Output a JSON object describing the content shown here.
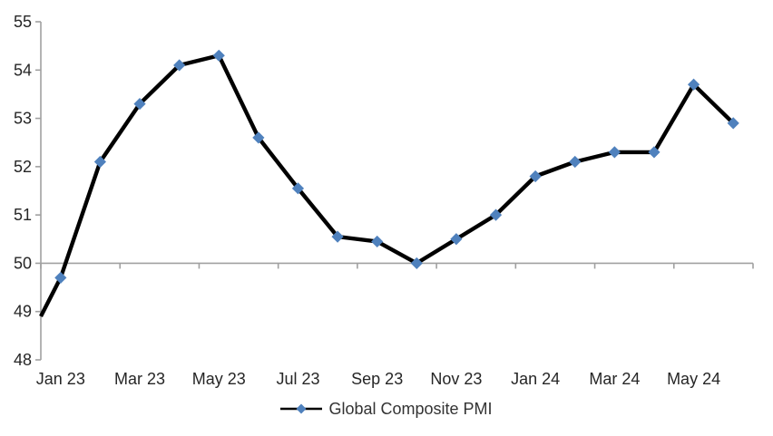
{
  "chart_data": {
    "type": "line",
    "title": "",
    "x": [
      "Dec 22",
      "Jan 23",
      "Feb 23",
      "Mar 23",
      "Apr 23",
      "May 23",
      "Jun 23",
      "Jul 23",
      "Aug 23",
      "Sep 23",
      "Oct 23",
      "Nov 23",
      "Dec 23",
      "Jan 24",
      "Feb 24",
      "Mar 24",
      "Apr 24",
      "May 24",
      "Jun 24"
    ],
    "series": [
      {
        "name": "Global Composite PMI",
        "values": [
          48.9,
          49.7,
          52.1,
          53.3,
          54.1,
          54.3,
          52.6,
          51.55,
          50.55,
          50.45,
          50.0,
          50.5,
          51.0,
          51.8,
          52.1,
          52.3,
          52.3,
          53.7,
          52.9
        ]
      }
    ],
    "x_tick_labels": [
      "Jan 23",
      "Mar 23",
      "May 23",
      "Jul 23",
      "Sep 23",
      "Nov 23",
      "Jan 24",
      "Mar 24",
      "May 24"
    ],
    "x_label_interval": 2,
    "y_ticks": [
      48,
      49,
      50,
      51,
      52,
      53,
      54,
      55
    ],
    "ylim": [
      48,
      55
    ],
    "x_axis_crosses_at": 50,
    "grid": "off",
    "legend_position": "bottom-center",
    "marker_shape": "diamond",
    "first_point_on_axis_without_marker": true
  },
  "legend": {
    "label": "Global Composite PMI"
  },
  "colors": {
    "series_line": "#000000",
    "marker_fill": "#4F81BD",
    "axis_line": "#A0A0A0",
    "tick_text": "#262626",
    "legend_text": "#333333",
    "background": "#FFFFFF"
  }
}
